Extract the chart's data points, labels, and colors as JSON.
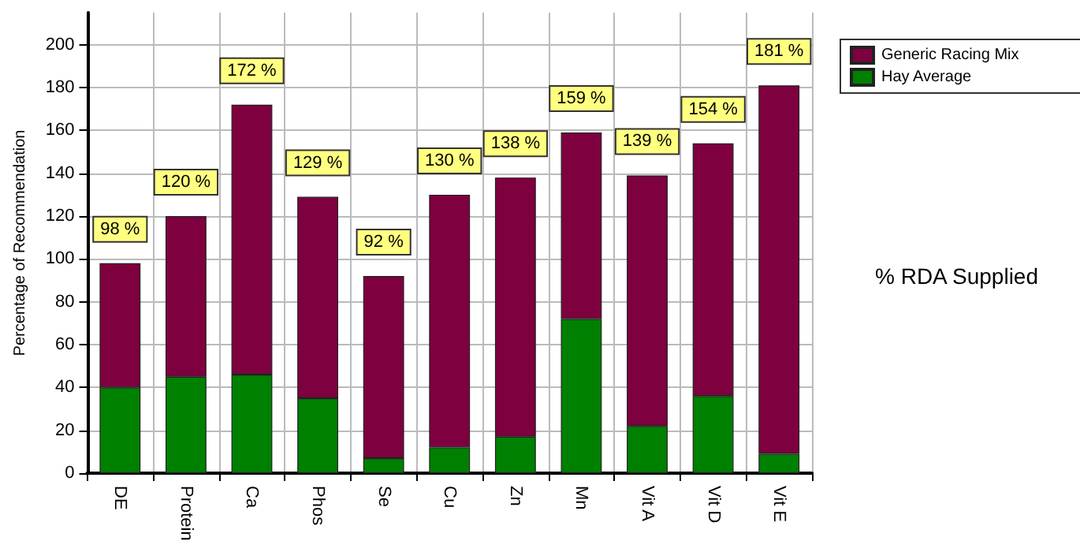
{
  "chart_data": {
    "type": "bar",
    "ylabel": "Percentage of Recommendation",
    "categories": [
      "DE",
      "Protein",
      "Ca",
      "Phos",
      "Se",
      "Cu",
      "Zn",
      "Mn",
      "Vit A",
      "Vit D",
      "Vit E"
    ],
    "series": [
      {
        "name": "Hay Average",
        "color": "#008000",
        "values": [
          40,
          45,
          46,
          35,
          7,
          12,
          17,
          72,
          22,
          36,
          9
        ]
      },
      {
        "name": "Generic Racing Mix",
        "color": "#7f003f",
        "values": [
          58,
          75,
          126,
          94,
          85,
          118,
          121,
          87,
          117,
          118,
          172
        ]
      }
    ],
    "stacked": true,
    "totals": [
      "98 %",
      "120 %",
      "172 %",
      "129 %",
      "92 %",
      "130 %",
      "138 %",
      "159 %",
      "139 %",
      "154 %",
      "181 %"
    ],
    "ylim": [
      0,
      215
    ],
    "yticks": [
      0,
      20,
      40,
      60,
      80,
      100,
      120,
      140,
      160,
      180,
      200
    ],
    "grid": true,
    "legend": "top right",
    "annotations": [
      "% RDA Supplied"
    ]
  }
}
